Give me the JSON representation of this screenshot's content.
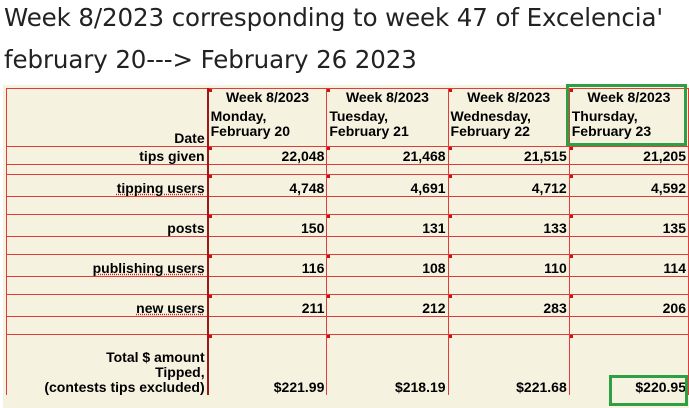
{
  "heading": {
    "line1": "Week 8/2023 corresponding to week 47 of Excelencia'",
    "line2": "february 20---> February 26  2023"
  },
  "table": {
    "date_label": "Date",
    "columns": [
      {
        "week": "Week 8/2023",
        "day_line1": "Monday,",
        "day_line2": "February 20"
      },
      {
        "week": "Week 8/2023",
        "day_line1": "Tuesday,",
        "day_line2": "February 21"
      },
      {
        "week": "Week 8/2023",
        "day_line1": "Wednesday,",
        "day_line2": "February 22"
      },
      {
        "week": "Week 8/2023",
        "day_line1": "Thursday,",
        "day_line2": "February 23"
      }
    ],
    "rows": [
      {
        "label": "tips given",
        "values": [
          "22,048",
          "21,468",
          "21,515",
          "21,205"
        ]
      },
      {
        "label": "tipping users",
        "values": [
          "4,748",
          "4,691",
          "4,712",
          "4,592"
        ]
      },
      {
        "label": "posts",
        "values": [
          "150",
          "131",
          "133",
          "135"
        ]
      },
      {
        "label": "publishing users",
        "values": [
          "116",
          "108",
          "110",
          "114"
        ]
      },
      {
        "label": "new users",
        "values": [
          "211",
          "212",
          "283",
          "206"
        ]
      }
    ],
    "total": {
      "label_line1": "Total $ amount",
      "label_line2": "Tipped,",
      "label_line3": "(contests tips excluded)",
      "values": [
        "$221.99",
        "$218.19",
        "$221.68",
        "$220.95"
      ]
    }
  },
  "highlight_color": "#2f9e44",
  "grid_color": "#e23b3b"
}
